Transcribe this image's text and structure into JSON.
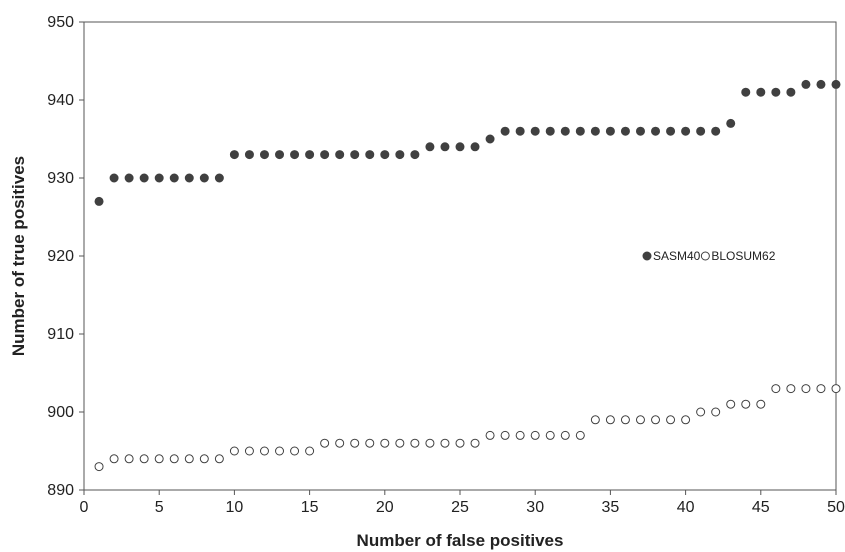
{
  "chart_data": {
    "type": "scatter",
    "title": "",
    "xlabel": "Number of false positives",
    "ylabel": "Number of true positives",
    "xlim": [
      0,
      50
    ],
    "ylim": [
      890,
      950
    ],
    "xticks": [
      "0",
      "5",
      "10",
      "15",
      "20",
      "25",
      "30",
      "35",
      "40",
      "45",
      "50"
    ],
    "yticks": [
      "890",
      "900",
      "910",
      "920",
      "930",
      "940",
      "950"
    ],
    "grid": false,
    "legend_position": "right-center",
    "x": [
      1,
      2,
      3,
      4,
      5,
      6,
      7,
      8,
      9,
      10,
      11,
      12,
      13,
      14,
      15,
      16,
      17,
      18,
      19,
      20,
      21,
      22,
      23,
      24,
      25,
      26,
      27,
      28,
      29,
      30,
      31,
      32,
      33,
      34,
      35,
      36,
      37,
      38,
      39,
      40,
      41,
      42,
      43,
      44,
      45,
      46,
      47,
      48,
      49,
      50
    ],
    "series": [
      {
        "name": "SASM40",
        "marker": "filled-circle",
        "color": "#404040",
        "values": [
          927,
          930,
          930,
          930,
          930,
          930,
          930,
          930,
          930,
          933,
          933,
          933,
          933,
          933,
          933,
          933,
          933,
          933,
          933,
          933,
          933,
          933,
          934,
          934,
          934,
          934,
          935,
          936,
          936,
          936,
          936,
          936,
          936,
          936,
          936,
          936,
          936,
          936,
          936,
          936,
          936,
          936,
          937,
          941,
          941,
          941,
          941,
          942,
          942,
          942
        ]
      },
      {
        "name": "BLOSUM62",
        "marker": "open-circle",
        "color": "#404040",
        "values": [
          893,
          894,
          894,
          894,
          894,
          894,
          894,
          894,
          894,
          895,
          895,
          895,
          895,
          895,
          895,
          896,
          896,
          896,
          896,
          896,
          896,
          896,
          896,
          896,
          896,
          896,
          897,
          897,
          897,
          897,
          897,
          897,
          897,
          899,
          899,
          899,
          899,
          899,
          899,
          899,
          900,
          900,
          901,
          901,
          901,
          903,
          903,
          903,
          903,
          903
        ]
      }
    ]
  }
}
